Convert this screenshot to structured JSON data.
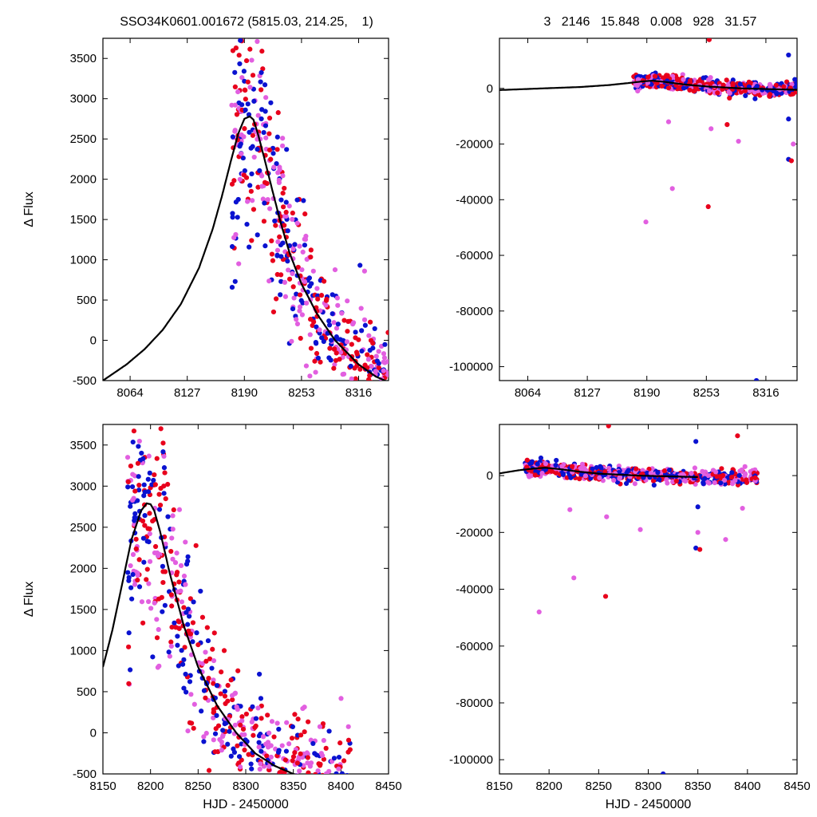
{
  "header": {
    "left_title": "SSO34K0601.001672 (5815.03, 214.25,    1)",
    "right_title": "3   2146   15.848   0.008   928   31.57"
  },
  "colors": {
    "red": "#e8001c",
    "blue": "#0a12d0",
    "pink": "#e25fe0",
    "model": "#000000"
  },
  "chart_data": [
    {
      "id": "top-left",
      "type": "scatter",
      "title": "",
      "xlabel": "",
      "ylabel": "Δ Flux",
      "xlim": [
        8034,
        8349
      ],
      "ylim": [
        -500,
        3750
      ],
      "xticks": [
        8064,
        8127,
        8190,
        8253,
        8316
      ],
      "xtick_labels": [
        "8064",
        "8127",
        "8190",
        "8253",
        "8316"
      ],
      "yticks": [
        -500,
        0,
        500,
        1000,
        1500,
        2000,
        2500,
        3000,
        3500
      ],
      "ytick_labels": [
        "-500",
        "0",
        "500",
        "1000",
        "1500",
        "2000",
        "2500",
        "3000",
        "3500"
      ],
      "grid": false,
      "model": {
        "x": [
          8034,
          8060,
          8080,
          8100,
          8120,
          8140,
          8155,
          8165,
          8175,
          8183,
          8190,
          8196,
          8200,
          8205,
          8212,
          8220,
          8230,
          8240,
          8253,
          8270,
          8290,
          8316,
          8335,
          8349
        ],
        "y": [
          -500,
          -300,
          -110,
          130,
          450,
          900,
          1380,
          1780,
          2220,
          2560,
          2750,
          2780,
          2740,
          2560,
          2260,
          1900,
          1460,
          1080,
          700,
          330,
          0,
          -300,
          -450,
          -520
        ]
      }
    },
    {
      "id": "top-right",
      "type": "scatter",
      "title": "",
      "xlabel": "",
      "ylabel": "",
      "xlim": [
        8034,
        8349
      ],
      "ylim": [
        -105000,
        18000
      ],
      "xticks": [
        8064,
        8127,
        8190,
        8253,
        8316
      ],
      "xtick_labels": [
        "8064",
        "8127",
        "8190",
        "8253",
        "8316"
      ],
      "yticks": [
        -100000,
        -80000,
        -60000,
        -40000,
        -20000,
        0
      ],
      "ytick_labels": [
        "-100000",
        "-80000",
        "-60000",
        "-40000",
        "-20000",
        "0"
      ],
      "grid": false,
      "model": {
        "x": [
          8034,
          8080,
          8120,
          8150,
          8170,
          8185,
          8196,
          8210,
          8230,
          8253,
          8290,
          8349
        ],
        "y": [
          -600,
          0,
          500,
          1200,
          1900,
          2500,
          2780,
          2300,
          1400,
          700,
          0,
          -520
        ]
      },
      "outliers": [
        {
          "x": 8189,
          "y": -48000,
          "color": "pink"
        },
        {
          "x": 8217,
          "y": -36000,
          "color": "pink"
        },
        {
          "x": 8213,
          "y": -12000,
          "color": "pink"
        },
        {
          "x": 8255,
          "y": -42500,
          "color": "red"
        },
        {
          "x": 8258,
          "y": -14500,
          "color": "pink"
        },
        {
          "x": 8256,
          "y": 17500,
          "color": "red"
        },
        {
          "x": 8287,
          "y": -19000,
          "color": "pink"
        },
        {
          "x": 8275,
          "y": -13000,
          "color": "red"
        },
        {
          "x": 8306,
          "y": -105000,
          "color": "blue"
        },
        {
          "x": 8340,
          "y": 12000,
          "color": "blue"
        },
        {
          "x": 8340,
          "y": -25500,
          "color": "blue"
        },
        {
          "x": 8343,
          "y": -26000,
          "color": "red"
        },
        {
          "x": 8345,
          "y": -20000,
          "color": "pink"
        },
        {
          "x": 8340,
          "y": -11000,
          "color": "blue"
        }
      ]
    },
    {
      "id": "bottom-left",
      "type": "scatter",
      "title": "",
      "xlabel": "HJD - 2450000",
      "ylabel": "Δ Flux",
      "xlim": [
        8150,
        8450
      ],
      "ylim": [
        -500,
        3750
      ],
      "xticks": [
        8150,
        8200,
        8250,
        8300,
        8350,
        8400,
        8450
      ],
      "xtick_labels": [
        "8150",
        "8200",
        "8250",
        "8300",
        "8350",
        "8400",
        "8450"
      ],
      "yticks": [
        -500,
        0,
        500,
        1000,
        1500,
        2000,
        2500,
        3000,
        3500
      ],
      "ytick_labels": [
        "-500",
        "0",
        "500",
        "1000",
        "1500",
        "2000",
        "2500",
        "3000",
        "3500"
      ],
      "grid": false,
      "model": {
        "x": [
          8150,
          8160,
          8170,
          8180,
          8190,
          8196,
          8200,
          8204,
          8210,
          8220,
          8235,
          8250,
          8270,
          8290,
          8310,
          8330,
          8350,
          8360
        ],
        "y": [
          800,
          1250,
          1800,
          2350,
          2700,
          2790,
          2780,
          2700,
          2450,
          1950,
          1300,
          800,
          330,
          0,
          -250,
          -400,
          -500,
          -540
        ]
      }
    },
    {
      "id": "bottom-right",
      "type": "scatter",
      "title": "",
      "xlabel": "HJD - 2450000",
      "ylabel": "",
      "xlim": [
        8150,
        8450
      ],
      "ylim": [
        -105000,
        18000
      ],
      "xticks": [
        8150,
        8200,
        8250,
        8300,
        8350,
        8400,
        8450
      ],
      "xtick_labels": [
        "8150",
        "8200",
        "8250",
        "8300",
        "8350",
        "8400",
        "8450"
      ],
      "yticks": [
        -100000,
        -80000,
        -60000,
        -40000,
        -20000,
        0
      ],
      "ytick_labels": [
        "-100000",
        "-80000",
        "-60000",
        "-40000",
        "-20000",
        "0"
      ],
      "grid": false,
      "model": {
        "x": [
          8150,
          8170,
          8185,
          8196,
          8210,
          8230,
          8250,
          8290,
          8350
        ],
        "y": [
          800,
          1900,
          2500,
          2780,
          2300,
          1400,
          700,
          0,
          -520
        ]
      },
      "outliers": [
        {
          "x": 8190,
          "y": -48000,
          "color": "pink"
        },
        {
          "x": 8225,
          "y": -36000,
          "color": "pink"
        },
        {
          "x": 8221,
          "y": -12000,
          "color": "pink"
        },
        {
          "x": 8257,
          "y": -42500,
          "color": "red"
        },
        {
          "x": 8258,
          "y": -14500,
          "color": "pink"
        },
        {
          "x": 8260,
          "y": 17500,
          "color": "red"
        },
        {
          "x": 8292,
          "y": -19000,
          "color": "pink"
        },
        {
          "x": 8315,
          "y": -105000,
          "color": "blue"
        },
        {
          "x": 8348,
          "y": 12000,
          "color": "blue"
        },
        {
          "x": 8348,
          "y": -25500,
          "color": "blue"
        },
        {
          "x": 8352,
          "y": -26000,
          "color": "red"
        },
        {
          "x": 8350,
          "y": -20000,
          "color": "pink"
        },
        {
          "x": 8378,
          "y": -22500,
          "color": "pink"
        },
        {
          "x": 8390,
          "y": 14000,
          "color": "red"
        },
        {
          "x": 8350,
          "y": -11000,
          "color": "blue"
        },
        {
          "x": 8395,
          "y": -11500,
          "color": "pink"
        }
      ]
    }
  ]
}
